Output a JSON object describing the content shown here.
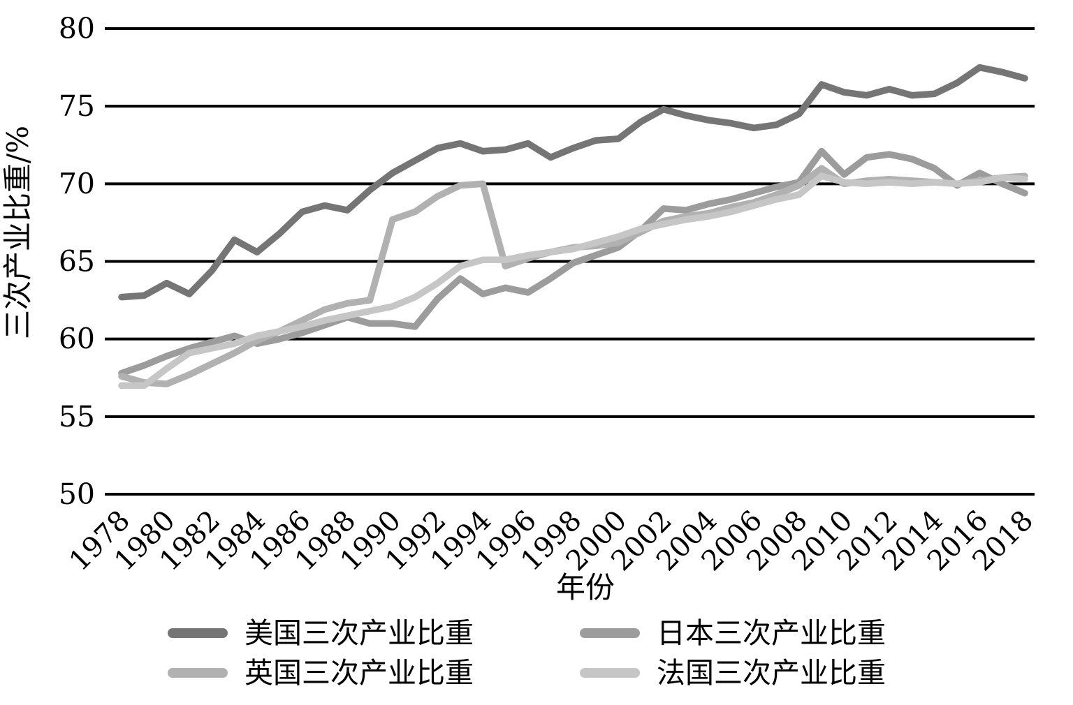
{
  "chart_data": {
    "type": "line",
    "title": "",
    "xlabel": "年份",
    "ylabel": "三次产业比重/%",
    "x_start": 1978,
    "x_end": 2018,
    "x_tick_step": 2,
    "x_tick_labels": [
      "1978",
      "1980",
      "1982",
      "1984",
      "1986",
      "1988",
      "1990",
      "1992",
      "1994",
      "1996",
      "1998",
      "2000",
      "2002",
      "2004",
      "2006",
      "2008",
      "2010",
      "2012",
      "2014",
      "2016",
      "2018"
    ],
    "ylim": [
      50,
      80
    ],
    "y_ticks": [
      80,
      75,
      70,
      65,
      60,
      55,
      50
    ],
    "grid": "horizontal-black",
    "legend_position": "bottom",
    "axis_color": "#000000",
    "series": [
      {
        "key": "us",
        "name": "美国三次产业比重",
        "color": "#757575",
        "values": [
          62.7,
          62.8,
          63.6,
          62.9,
          64.4,
          66.4,
          65.6,
          66.8,
          68.2,
          68.6,
          68.3,
          69.6,
          70.7,
          71.5,
          72.3,
          72.6,
          72.1,
          72.2,
          72.6,
          71.7,
          72.3,
          72.8,
          72.9,
          74.0,
          74.8,
          74.4,
          74.1,
          73.9,
          73.6,
          73.8,
          74.5,
          76.4,
          75.9,
          75.7,
          76.1,
          75.7,
          75.8,
          76.5,
          77.5,
          77.2,
          76.8
        ]
      },
      {
        "key": "japan",
        "name": "日本三次产业比重",
        "color": "#9c9c9c",
        "values": [
          57.8,
          58.3,
          58.9,
          59.4,
          59.8,
          60.2,
          59.7,
          60.0,
          60.4,
          60.9,
          61.4,
          61.0,
          61.0,
          60.8,
          62.6,
          63.9,
          62.9,
          63.3,
          63.0,
          63.9,
          64.9,
          65.4,
          65.9,
          67.0,
          68.4,
          68.3,
          68.7,
          69.0,
          69.4,
          69.8,
          70.1,
          72.1,
          70.6,
          71.7,
          71.9,
          71.6,
          71.0,
          69.9,
          70.7,
          70.0,
          69.4
        ]
      },
      {
        "key": "uk",
        "name": "英国三次产业比重",
        "color": "#b1b1b1",
        "values": [
          57.6,
          57.2,
          57.1,
          57.7,
          58.4,
          59.1,
          59.9,
          60.5,
          61.2,
          61.9,
          62.3,
          62.5,
          67.7,
          68.2,
          69.2,
          69.9,
          70.0,
          64.7,
          65.2,
          65.6,
          65.9,
          66.0,
          66.2,
          66.9,
          67.6,
          67.9,
          68.1,
          68.5,
          68.8,
          69.3,
          69.9,
          71.0,
          70.0,
          70.2,
          70.3,
          70.2,
          70.1,
          70.0,
          70.2,
          70.4,
          70.5
        ]
      },
      {
        "key": "france",
        "name": "法国三次产业比重",
        "color": "#c6c6c6",
        "values": [
          57.0,
          57.0,
          58.1,
          59.1,
          59.4,
          59.7,
          60.2,
          60.5,
          60.8,
          61.2,
          61.5,
          61.8,
          62.1,
          62.7,
          63.6,
          64.7,
          65.1,
          65.1,
          65.4,
          65.6,
          65.8,
          66.2,
          66.6,
          67.1,
          67.4,
          67.7,
          67.9,
          68.2,
          68.6,
          69.0,
          69.3,
          70.5,
          70.1,
          70.0,
          70.1,
          70.0,
          70.1,
          70.0,
          70.1,
          70.4,
          70.3
        ]
      }
    ]
  }
}
